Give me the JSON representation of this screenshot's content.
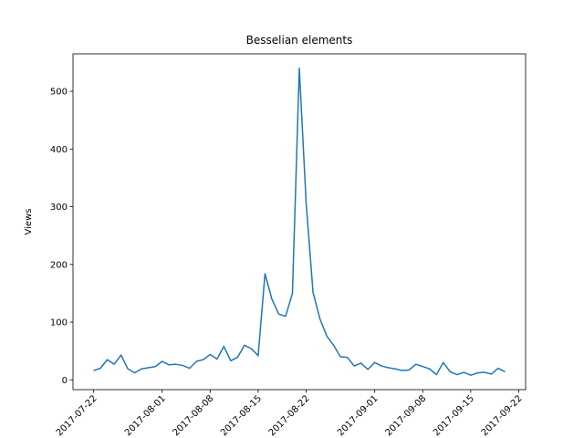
{
  "chart_data": {
    "type": "line",
    "title": "Besselian elements",
    "y_label": "Views",
    "color": "#1f77b4",
    "x": [
      "2017-07-22",
      "2017-07-23",
      "2017-07-24",
      "2017-07-25",
      "2017-07-26",
      "2017-07-27",
      "2017-07-28",
      "2017-07-29",
      "2017-07-30",
      "2017-07-31",
      "2017-08-01",
      "2017-08-02",
      "2017-08-03",
      "2017-08-04",
      "2017-08-05",
      "2017-08-06",
      "2017-08-07",
      "2017-08-08",
      "2017-08-09",
      "2017-08-10",
      "2017-08-11",
      "2017-08-12",
      "2017-08-13",
      "2017-08-14",
      "2017-08-15",
      "2017-08-16",
      "2017-08-17",
      "2017-08-18",
      "2017-08-19",
      "2017-08-20",
      "2017-08-21",
      "2017-08-22",
      "2017-08-23",
      "2017-08-24",
      "2017-08-25",
      "2017-08-26",
      "2017-08-27",
      "2017-08-28",
      "2017-08-29",
      "2017-08-30",
      "2017-08-31",
      "2017-09-01",
      "2017-09-02",
      "2017-09-03",
      "2017-09-04",
      "2017-09-05",
      "2017-09-06",
      "2017-09-07",
      "2017-09-08",
      "2017-09-09",
      "2017-09-10",
      "2017-09-11",
      "2017-09-12",
      "2017-09-13",
      "2017-09-14",
      "2017-09-15",
      "2017-09-16",
      "2017-09-17",
      "2017-09-18",
      "2017-09-19",
      "2017-09-20"
    ],
    "values": [
      16,
      20,
      35,
      27,
      43,
      19,
      12,
      19,
      21,
      23,
      32,
      26,
      27,
      25,
      20,
      32,
      35,
      44,
      36,
      58,
      33,
      39,
      60,
      54,
      42,
      184,
      140,
      114,
      110,
      150,
      540,
      306,
      152,
      106,
      76,
      60,
      40,
      39,
      24,
      29,
      18,
      30,
      24,
      21,
      19,
      16,
      17,
      27,
      23,
      19,
      9,
      30,
      14,
      9,
      13,
      8,
      12,
      13,
      10,
      20,
      14
    ],
    "xlim": [
      "2017-07-19",
      "2017-09-23"
    ],
    "xticks": [
      "2017-07-22",
      "2017-08-01",
      "2017-08-08",
      "2017-08-15",
      "2017-08-22",
      "2017-09-01",
      "2017-09-08",
      "2017-09-15",
      "2017-09-22"
    ],
    "ylim": [
      -17,
      565
    ],
    "yticks": [
      0,
      100,
      200,
      300,
      400,
      500
    ]
  }
}
